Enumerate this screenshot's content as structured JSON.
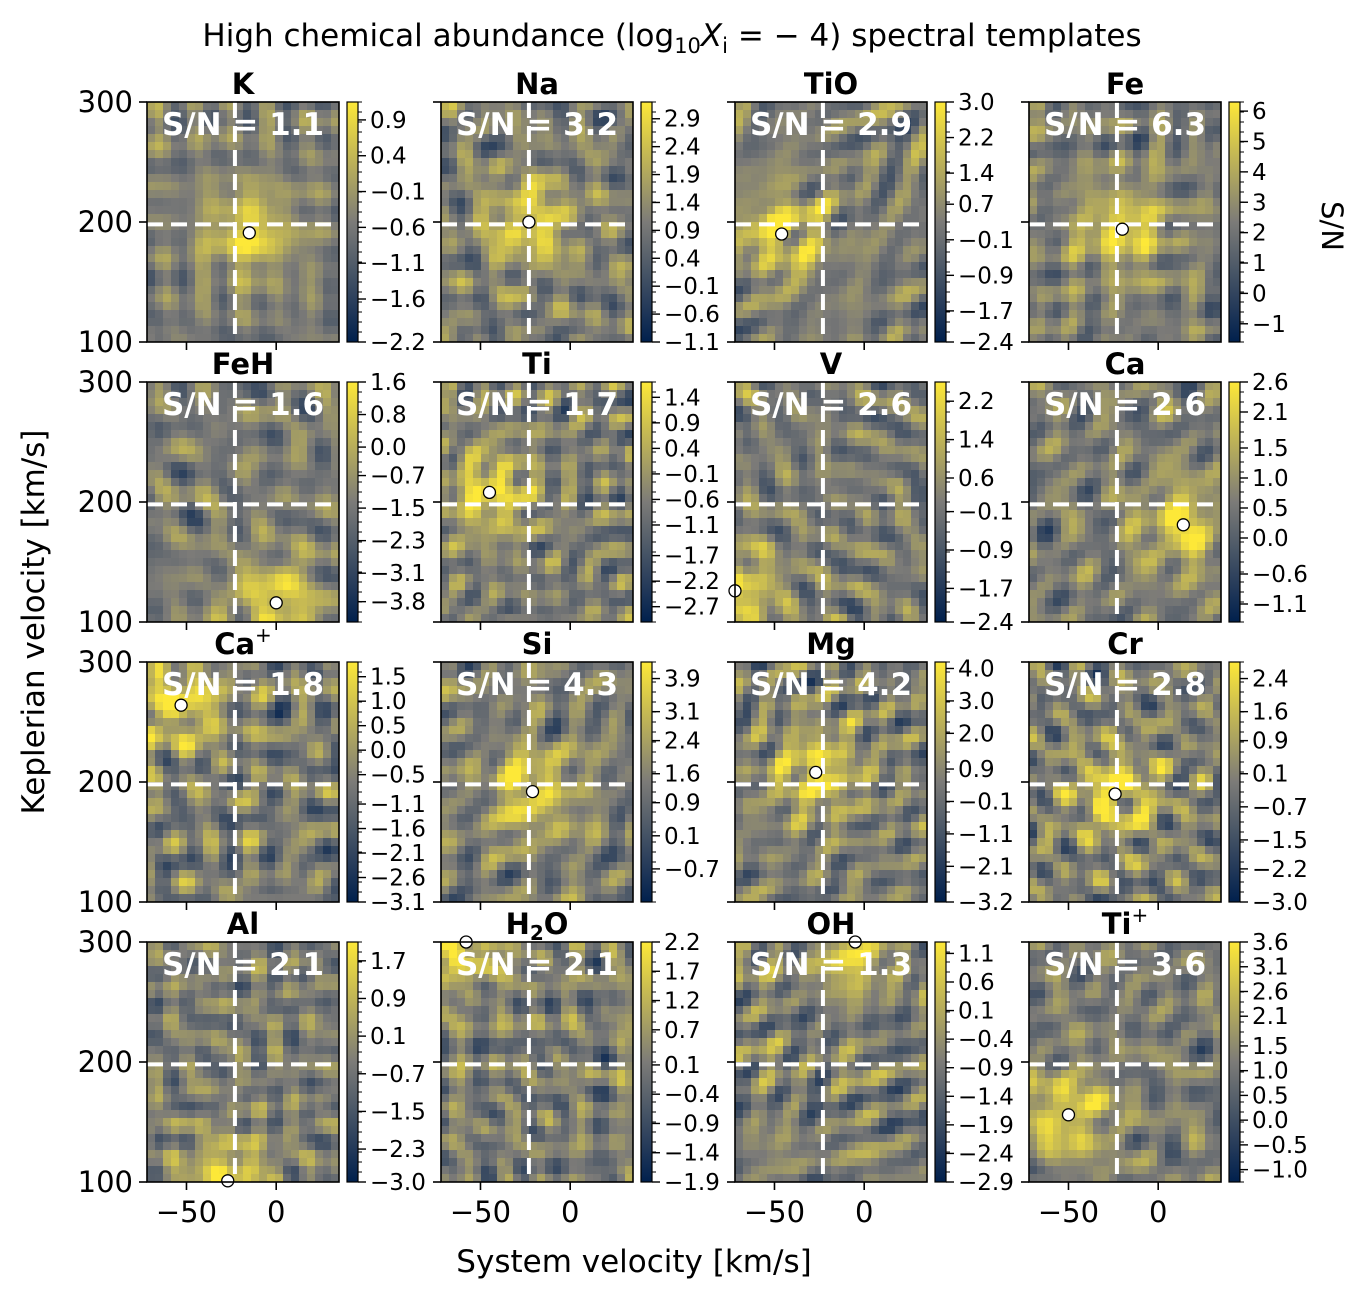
{
  "figure": {
    "title_prefix": "High chemical abundance (log",
    "title_sub": "10",
    "title_var": "X",
    "title_var_sub": "i",
    "title_suffix": " = − 4) spectral templates",
    "xlabel": "System velocity [km/s]",
    "ylabel": "Keplerian velocity [km/s]",
    "cbar_label": "S/N",
    "colormap": "cividis",
    "colors": {
      "low": "#00204d",
      "mid": "#7c7b78",
      "high": "#fde838"
    },
    "marker_color": "#ffffff",
    "guide_color": "#ffffff"
  },
  "chart_data": {
    "type": "heatmap",
    "grid": {
      "rows": 4,
      "cols": 4,
      "shared_x": true,
      "shared_y": true
    },
    "xlim": [
      -72,
      35
    ],
    "ylim": [
      100,
      300
    ],
    "x_ticks": [
      -50,
      0
    ],
    "x_ticklabels": [
      "−50",
      "0"
    ],
    "y_ticks": [
      100,
      200,
      300
    ],
    "y_ticklabels": [
      "100",
      "200",
      "300"
    ],
    "expected": {
      "vsys": -23,
      "kp": 198
    },
    "panels": [
      {
        "title": "K",
        "sn_label": "S/N = 1.1",
        "peak": {
          "vsys": -15,
          "kp": 191
        },
        "clim": [
          -2.2,
          1.15
        ],
        "cbar_ticks": [
          "0.9",
          "0.4",
          "−0.1",
          "−0.6",
          "−1.1",
          "−1.6",
          "−2.2"
        ],
        "cbar_tick_values": [
          0.9,
          0.4,
          -0.1,
          -0.6,
          -1.1,
          -1.6,
          -2.2
        ]
      },
      {
        "title": "Na",
        "sn_label": "S/N = 3.2",
        "peak": {
          "vsys": -23,
          "kp": 200
        },
        "clim": [
          -1.1,
          3.2
        ],
        "cbar_ticks": [
          "2.9",
          "2.4",
          "1.9",
          "1.4",
          "0.9",
          "0.4",
          "−0.1",
          "−0.6",
          "−1.1"
        ],
        "cbar_tick_values": [
          2.9,
          2.4,
          1.9,
          1.4,
          0.9,
          0.4,
          -0.1,
          -0.6,
          -1.1
        ]
      },
      {
        "title": "TiO",
        "sn_label": "S/N = 2.9",
        "peak": {
          "vsys": -46,
          "kp": 190
        },
        "clim": [
          -2.4,
          3.0
        ],
        "cbar_ticks": [
          "3.0",
          "2.2",
          "1.4",
          "0.7",
          "−0.1",
          "−0.9",
          "−1.7",
          "−2.4"
        ],
        "cbar_tick_values": [
          3.0,
          2.2,
          1.4,
          0.7,
          -0.1,
          -0.9,
          -1.7,
          -2.4
        ]
      },
      {
        "title": "Fe",
        "sn_label": "S/N = 6.3",
        "peak": {
          "vsys": -20,
          "kp": 194
        },
        "clim": [
          -1.6,
          6.3
        ],
        "cbar_ticks": [
          "6",
          "5",
          "4",
          "3",
          "2",
          "1",
          "0",
          "−1"
        ],
        "cbar_tick_values": [
          6,
          5,
          4,
          3,
          2,
          1,
          0,
          -1
        ]
      },
      {
        "title": "FeH",
        "sn_label": "S/N = 1.6",
        "peak": {
          "vsys": 0,
          "kp": 116
        },
        "clim": [
          -4.3,
          1.6
        ],
        "cbar_ticks": [
          "1.6",
          "0.8",
          "0.0",
          "−0.7",
          "−1.5",
          "−2.3",
          "−3.1",
          "−3.8"
        ],
        "cbar_tick_values": [
          1.6,
          0.8,
          0.0,
          -0.7,
          -1.5,
          -2.3,
          -3.1,
          -3.8
        ]
      },
      {
        "title": "Ti",
        "sn_label": "S/N = 1.7",
        "peak": {
          "vsys": -45,
          "kp": 208
        },
        "clim": [
          -3.0,
          1.7
        ],
        "cbar_ticks": [
          "1.4",
          "0.9",
          "0.4",
          "−0.1",
          "−0.6",
          "−1.1",
          "−1.7",
          "−2.2",
          "−2.7"
        ],
        "cbar_tick_values": [
          1.4,
          0.9,
          0.4,
          -0.1,
          -0.6,
          -1.1,
          -1.7,
          -2.2,
          -2.7
        ]
      },
      {
        "title": "V",
        "sn_label": "S/N = 2.6",
        "peak": {
          "vsys": -72,
          "kp": 126
        },
        "clim": [
          -2.4,
          2.6
        ],
        "cbar_ticks": [
          "2.2",
          "1.4",
          "0.6",
          "−0.1",
          "−0.9",
          "−1.7",
          "−2.4"
        ],
        "cbar_tick_values": [
          2.2,
          1.4,
          0.6,
          -0.1,
          -0.9,
          -1.7,
          -2.4
        ]
      },
      {
        "title": "Ca",
        "sn_label": "S/N = 2.6",
        "peak": {
          "vsys": 14,
          "kp": 181
        },
        "clim": [
          -1.4,
          2.6
        ],
        "cbar_ticks": [
          "2.6",
          "2.1",
          "1.5",
          "1.0",
          "0.5",
          "0.0",
          "−0.6",
          "−1.1"
        ],
        "cbar_tick_values": [
          2.6,
          2.1,
          1.5,
          1.0,
          0.5,
          0.0,
          -0.6,
          -1.1
        ]
      },
      {
        "title": "Ca",
        "title_sup": "+",
        "sn_label": "S/N = 1.8",
        "peak": {
          "vsys": -53,
          "kp": 264
        },
        "clim": [
          -3.1,
          1.8
        ],
        "cbar_ticks": [
          "1.5",
          "1.0",
          "0.5",
          "0.0",
          "−0.5",
          "−1.1",
          "−1.6",
          "−2.1",
          "−2.6",
          "−3.1"
        ],
        "cbar_tick_values": [
          1.5,
          1.0,
          0.5,
          0.0,
          -0.5,
          -1.1,
          -1.6,
          -2.1,
          -2.6,
          -3.1
        ]
      },
      {
        "title": "Si",
        "sn_label": "S/N = 4.3",
        "peak": {
          "vsys": -21,
          "kp": 192
        },
        "clim": [
          -1.5,
          4.3
        ],
        "cbar_ticks": [
          "3.9",
          "3.1",
          "2.4",
          "1.6",
          "0.9",
          "0.1",
          "−0.7"
        ],
        "cbar_tick_values": [
          3.9,
          3.1,
          2.4,
          1.6,
          0.9,
          0.1,
          -0.7
        ]
      },
      {
        "title": "Mg",
        "sn_label": "S/N = 4.2",
        "peak": {
          "vsys": -27,
          "kp": 208
        },
        "clim": [
          -3.2,
          4.2
        ],
        "cbar_ticks": [
          "4.0",
          "3.0",
          "2.0",
          "0.9",
          "−0.1",
          "−1.1",
          "−2.1",
          "−3.2"
        ],
        "cbar_tick_values": [
          4.0,
          3.0,
          2.0,
          0.9,
          -0.1,
          -1.1,
          -2.1,
          -3.2
        ]
      },
      {
        "title": "Cr",
        "sn_label": "S/N = 2.8",
        "peak": {
          "vsys": -24,
          "kp": 190
        },
        "clim": [
          -3.0,
          2.8
        ],
        "cbar_ticks": [
          "2.4",
          "1.6",
          "0.9",
          "0.1",
          "−0.7",
          "−1.5",
          "−2.2",
          "−3.0"
        ],
        "cbar_tick_values": [
          2.4,
          1.6,
          0.9,
          0.1,
          -0.7,
          -1.5,
          -2.2,
          -3.0
        ]
      },
      {
        "title": "Al",
        "sn_label": "S/N = 2.1",
        "peak": {
          "vsys": -27,
          "kp": 101
        },
        "clim": [
          -3.0,
          2.1
        ],
        "cbar_ticks": [
          "1.7",
          "0.9",
          "0.1",
          "−0.7",
          "−1.5",
          "−2.3",
          "−3.0"
        ],
        "cbar_tick_values": [
          1.7,
          0.9,
          0.1,
          -0.7,
          -1.5,
          -2.3,
          -3.0
        ]
      },
      {
        "title": "H",
        "title_sub": "2",
        "title_tail": "O",
        "sn_label": "S/N = 2.1",
        "peak": {
          "vsys": -58,
          "kp": 300
        },
        "clim": [
          -1.9,
          2.2
        ],
        "cbar_ticks": [
          "2.2",
          "1.7",
          "1.2",
          "0.7",
          "0.1",
          "−0.4",
          "−0.9",
          "−1.4",
          "−1.9"
        ],
        "cbar_tick_values": [
          2.2,
          1.7,
          1.2,
          0.7,
          0.1,
          -0.4,
          -0.9,
          -1.4,
          -1.9
        ]
      },
      {
        "title": "OH",
        "sn_label": "S/N = 1.3",
        "peak": {
          "vsys": -5,
          "kp": 300
        },
        "clim": [
          -2.9,
          1.3
        ],
        "cbar_ticks": [
          "1.1",
          "0.6",
          "0.1",
          "−0.4",
          "−0.9",
          "−1.4",
          "−1.9",
          "−2.4",
          "−2.9"
        ],
        "cbar_tick_values": [
          1.1,
          0.6,
          0.1,
          -0.4,
          -0.9,
          -1.4,
          -1.9,
          -2.4,
          -2.9
        ]
      },
      {
        "title": "Ti",
        "title_sup": "+",
        "sn_label": "S/N = 3.6",
        "peak": {
          "vsys": -50,
          "kp": 156
        },
        "clim": [
          -1.25,
          3.6
        ],
        "cbar_ticks": [
          "3.6",
          "3.1",
          "2.6",
          "2.1",
          "1.5",
          "1.0",
          "0.5",
          "0.0",
          "−0.5",
          "−1.0"
        ],
        "cbar_tick_values": [
          3.6,
          3.1,
          2.6,
          2.1,
          1.5,
          1.0,
          0.5,
          0.0,
          -0.5,
          -1.0
        ]
      }
    ]
  }
}
